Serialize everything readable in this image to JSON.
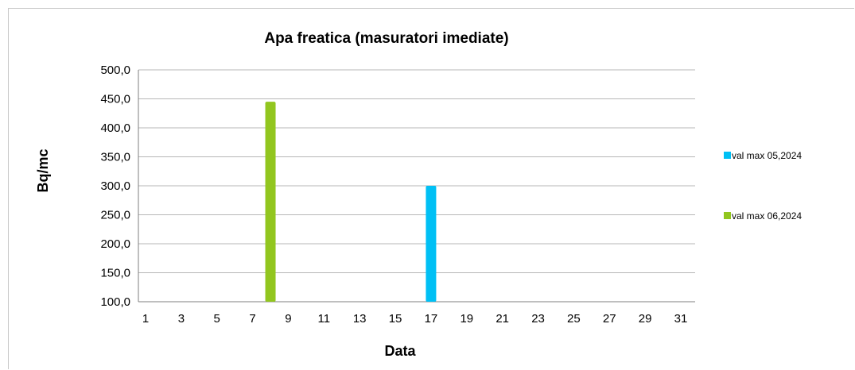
{
  "chart_data": {
    "type": "bar",
    "title": "Apa freatica (masuratori imediate)",
    "xlabel": "Data",
    "ylabel": "Bq/mc",
    "x": [
      1,
      2,
      3,
      4,
      5,
      6,
      7,
      8,
      9,
      10,
      11,
      12,
      13,
      14,
      15,
      16,
      17,
      18,
      19,
      20,
      21,
      22,
      23,
      24,
      25,
      26,
      27,
      28,
      29,
      30,
      31
    ],
    "x_tick_labels": [
      "1",
      "3",
      "5",
      "7",
      "9",
      "11",
      "13",
      "15",
      "17",
      "19",
      "21",
      "23",
      "25",
      "27",
      "29",
      "31"
    ],
    "ylim": [
      100,
      500
    ],
    "y_tick_labels": [
      "500,0",
      "450,0",
      "400,0",
      "350,0",
      "300,0",
      "250,0",
      "200,0",
      "150,0",
      "100,0"
    ],
    "grid": "horizontal",
    "legend_position": "right",
    "series": [
      {
        "name": "val max 05,2024",
        "color": "#00c0f5",
        "points": [
          {
            "x": 17,
            "y": 300
          }
        ]
      },
      {
        "name": "val max 06,2024",
        "color": "#92c61f",
        "points": [
          {
            "x": 8,
            "y": 445
          }
        ]
      }
    ]
  }
}
